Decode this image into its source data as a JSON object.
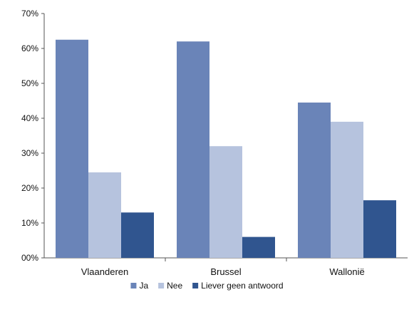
{
  "chart_data": {
    "type": "bar",
    "title": "",
    "xlabel": "",
    "ylabel": "",
    "categories": [
      "Vlaanderen",
      "Brussel",
      "Wallonië"
    ],
    "series": [
      {
        "name": "Ja",
        "color": "#6a84b8",
        "values": [
          62.5,
          62.0,
          44.5
        ]
      },
      {
        "name": "Nee",
        "color": "#b6c3de",
        "values": [
          24.5,
          32.0,
          39.0
        ]
      },
      {
        "name": "Liever geen antwoord",
        "color": "#30558f",
        "values": [
          13.0,
          6.0,
          16.5
        ]
      }
    ],
    "ylim": [
      0,
      70
    ],
    "yticks": [
      0,
      10,
      20,
      30,
      40,
      50,
      60,
      70
    ],
    "ytick_labels": [
      "00%",
      "10%",
      "20%",
      "30%",
      "40%",
      "50%",
      "60%",
      "70%"
    ],
    "grid": false,
    "legend_position": "bottom"
  }
}
